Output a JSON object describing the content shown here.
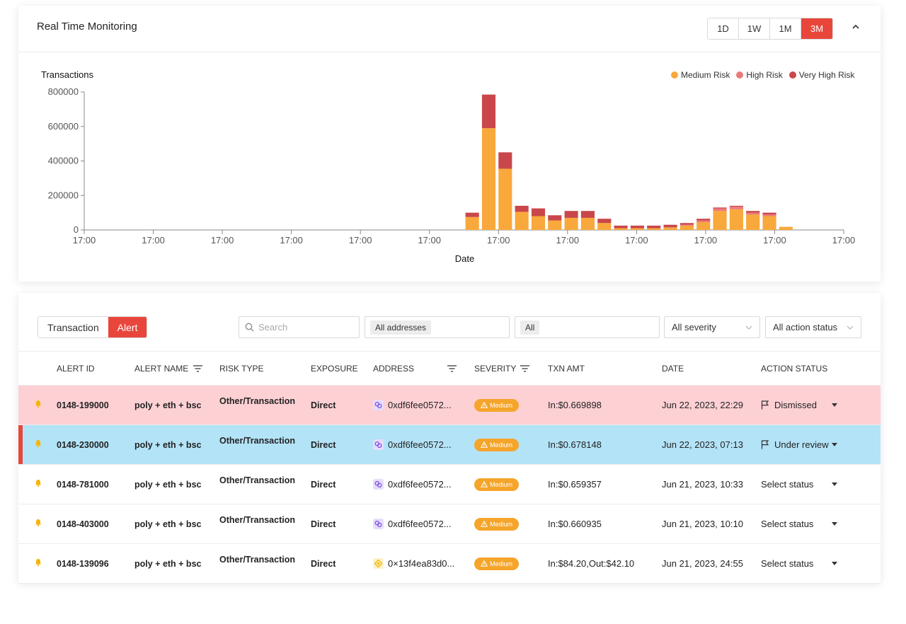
{
  "monitor": {
    "title": "Real Time Monitoring",
    "ranges": [
      "1D",
      "1W",
      "1M",
      "3M"
    ],
    "active_range": "3M",
    "collapse_icon": "chevron-up-icon"
  },
  "chart_data": {
    "type": "bar",
    "title": "Transactions",
    "xlabel": "Date",
    "ylabel": "",
    "ylim": [
      0,
      800000
    ],
    "yticks": [
      "0",
      "200000",
      "400000",
      "600000",
      "800000"
    ],
    "xticks": [
      "17:00",
      "17:00",
      "17:00",
      "17:00",
      "17:00",
      "17:00",
      "17:00",
      "17:00",
      "17:00",
      "17:00",
      "17:00",
      "17:00"
    ],
    "stacked": true,
    "grid": false,
    "legend_position": "top-right",
    "x_start": 0,
    "x_end": 46,
    "bars_from": 23,
    "series": [
      {
        "name": "Medium Risk",
        "color": "#f9a83b",
        "values": [
          75000,
          590000,
          355000,
          105000,
          80000,
          55000,
          70000,
          70000,
          40000,
          10000,
          10000,
          10000,
          15000,
          25000,
          45000,
          110000,
          120000,
          90000,
          80000,
          18000
        ]
      },
      {
        "name": "High Risk",
        "color": "#ec7a7a",
        "values": [
          0,
          0,
          0,
          0,
          0,
          0,
          0,
          0,
          0,
          0,
          0,
          0,
          0,
          5000,
          10000,
          15000,
          15000,
          10000,
          10000,
          0
        ]
      },
      {
        "name": "Very High Risk",
        "color": "#c9474b",
        "values": [
          25000,
          195000,
          95000,
          35000,
          45000,
          30000,
          40000,
          40000,
          25000,
          15000,
          15000,
          15000,
          15000,
          10000,
          10000,
          5000,
          5000,
          10000,
          10000,
          0
        ]
      }
    ]
  },
  "alerts": {
    "tabs": [
      "Transaction",
      "Alert"
    ],
    "active_tab": "Alert",
    "search_placeholder": "Search",
    "address_filter": "All addresses",
    "type_filter": "All",
    "severity_filter": "All severity",
    "action_filter": "All action status",
    "columns": [
      "ALERT ID",
      "ALERT NAME",
      "RISK TYPE",
      "EXPOSURE",
      "ADDRESS",
      "SEVERITY",
      "TXN AMT",
      "DATE",
      "ACTION STATUS"
    ],
    "rows": [
      {
        "id": "0148-199000",
        "name": "poly + eth + bsc",
        "risk": "Other/Transaction",
        "exposure": "Direct",
        "address": "0xdf6fee0572...",
        "address_icon": "link-icon",
        "severity": "Medium",
        "amount": "In:$0.669898",
        "date": "Jun 22, 2023, 22:29",
        "status": "Dismissed",
        "state": "dismissed"
      },
      {
        "id": "0148-230000",
        "name": "poly + eth + bsc",
        "risk": "Other/Transaction",
        "exposure": "Direct",
        "address": "0xdf6fee0572...",
        "address_icon": "link-icon",
        "severity": "Medium",
        "amount": "In:$0.678148",
        "date": "Jun 22, 2023, 07:13",
        "status": "Under review",
        "state": "review"
      },
      {
        "id": "0148-781000",
        "name": "poly + eth + bsc",
        "risk": "Other/Transaction",
        "exposure": "Direct",
        "address": "0xdf6fee0572...",
        "address_icon": "link-icon",
        "severity": "Medium",
        "amount": "In:$0.659357",
        "date": "Jun 21, 2023, 10:33",
        "status": "Select status",
        "state": "none"
      },
      {
        "id": "0148-403000",
        "name": "poly + eth + bsc",
        "risk": "Other/Transaction",
        "exposure": "Direct",
        "address": "0xdf6fee0572...",
        "address_icon": "link-icon",
        "severity": "Medium",
        "amount": "In:$0.660935",
        "date": "Jun 21, 2023, 10:10",
        "status": "Select status",
        "state": "none"
      },
      {
        "id": "0148-139096",
        "name": "poly + eth + bsc",
        "risk": "Other/Transaction",
        "exposure": "Direct",
        "address": "0×13f4ea83d0...",
        "address_icon": "bnb-icon",
        "severity": "Medium",
        "amount": "In:$84.20,Out:$42.10",
        "date": "Jun 21, 2023, 24:55",
        "status": "Select status",
        "state": "none"
      }
    ]
  }
}
